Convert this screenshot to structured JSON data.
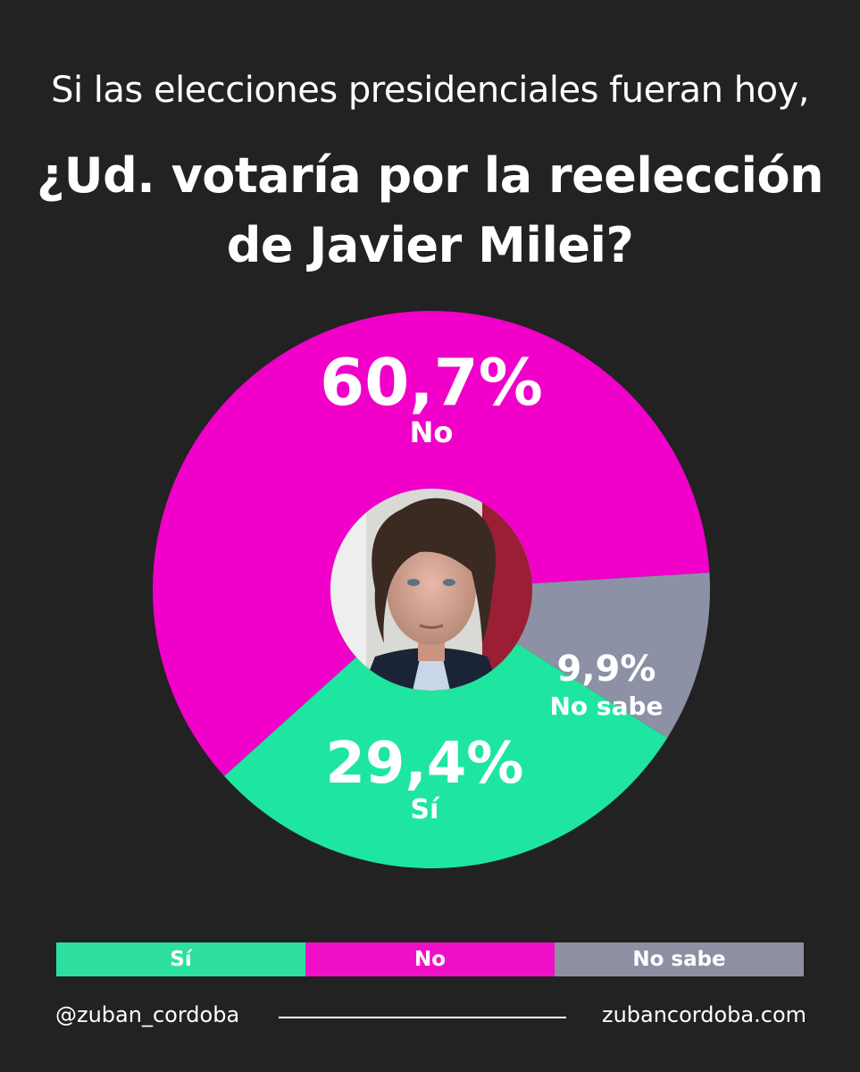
{
  "header": {
    "subtitle": "Si las elecciones presidenciales fueran hoy,",
    "title_line1": "¿Ud. votaría por la reelección",
    "title_line2": "de Javier Milei?"
  },
  "chart_data": {
    "type": "pie",
    "title": "¿Ud. votaría por la reelección de Javier Milei?",
    "subtitle": "Si las elecciones presidenciales fueran hoy,",
    "series": [
      {
        "name": "No",
        "value": 60.7,
        "value_label": "60,7%",
        "color": "#f000c8"
      },
      {
        "name": "No sabe",
        "value": 9.9,
        "value_label": "9,9%",
        "color": "#8c91a5"
      },
      {
        "name": "Sí",
        "value": 29.4,
        "value_label": "29,4%",
        "color": "#1ee6a0"
      }
    ],
    "center_image": "portrait-photo",
    "legend_position": "bottom"
  },
  "legend": [
    {
      "label": "Sí",
      "color": "#2ee0a0"
    },
    {
      "label": "No",
      "color": "#ef10c6"
    },
    {
      "label": "No sabe",
      "color": "#8d90a3"
    }
  ],
  "footer": {
    "handle": "@zuban_cordoba",
    "website": "zubancordoba.com"
  }
}
